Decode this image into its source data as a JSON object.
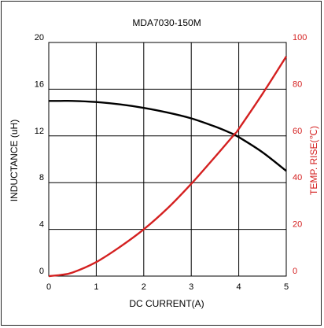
{
  "chart_data": {
    "type": "line",
    "title": "MDA7030-150M",
    "xlabel": "DC CURRENT(A)",
    "ylabel_left": "INDUCTANCE (uH)",
    "ylabel_right": "TEMP. RISE(℃)",
    "xlim": [
      0,
      5
    ],
    "ylim_left": [
      0,
      20
    ],
    "ylim_right": [
      0,
      100
    ],
    "x_ticks": [
      "0",
      "1",
      "2",
      "3",
      "4",
      "5"
    ],
    "y_left_ticks": [
      "0",
      "4",
      "8",
      "12",
      "16",
      "20"
    ],
    "y_right_ticks": [
      "0",
      "20",
      "40",
      "60",
      "80",
      "100"
    ],
    "grid": true,
    "colors": {
      "inductance": "#000000",
      "temp_rise": "#d42020",
      "right_axis_text": "#d42020"
    },
    "series": [
      {
        "axis": "left",
        "x": [
          0,
          0.25,
          0.5,
          1.0,
          1.5,
          2.0,
          2.5,
          3.0,
          3.5,
          3.8,
          4.0,
          4.5,
          5.0
        ],
        "y": [
          15.0,
          15.0,
          15.0,
          14.9,
          14.7,
          14.4,
          14.0,
          13.5,
          12.8,
          12.3,
          11.9,
          10.6,
          9.0
        ]
      },
      {
        "axis": "right",
        "x": [
          0,
          0.25,
          0.5,
          1.0,
          1.5,
          2.0,
          2.5,
          3.0,
          3.5,
          3.9,
          4.0,
          4.5,
          5.0
        ],
        "y": [
          0,
          0.5,
          1.5,
          6,
          12.5,
          20,
          29,
          39.5,
          51,
          60.5,
          63,
          78,
          94
        ]
      }
    ]
  }
}
